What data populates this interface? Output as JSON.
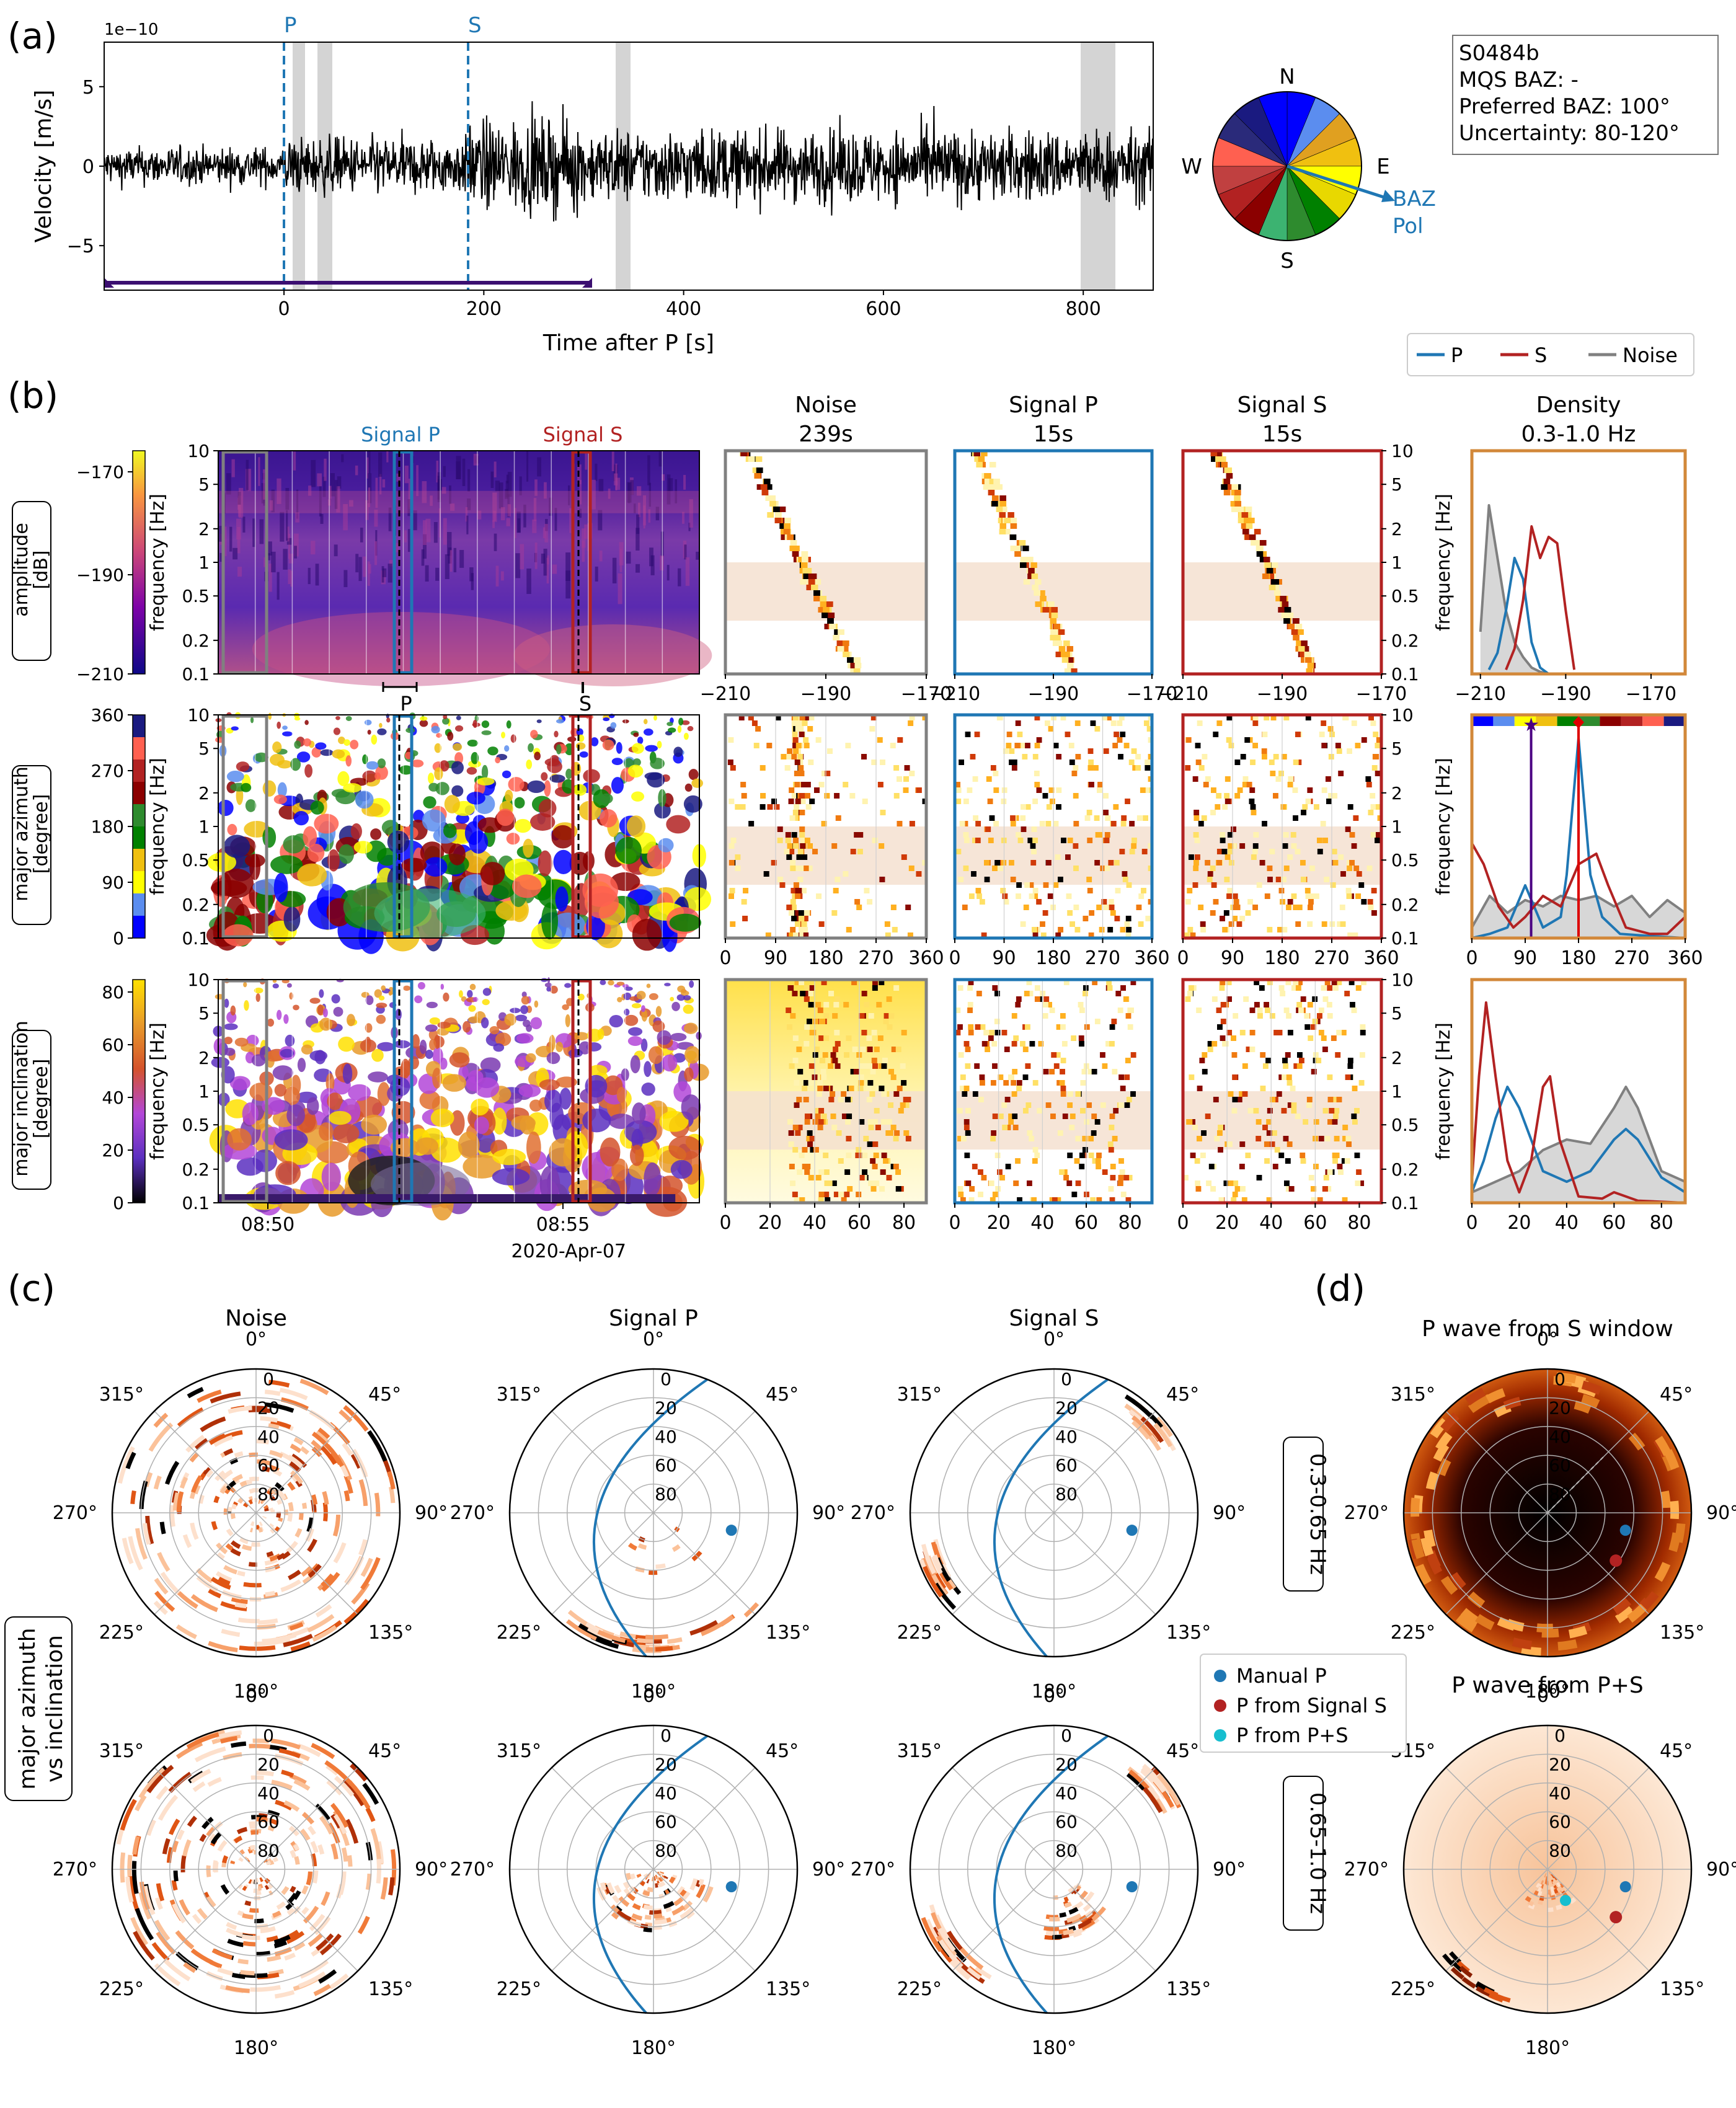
{
  "panel_labels": {
    "a": "(a)",
    "b": "(b)",
    "c": "(c)",
    "d": "(d)"
  },
  "colors": {
    "p": "#1f77b4",
    "s": "#b22222",
    "noise": "#808080",
    "density_frame": "#d2883a",
    "band": "#f5e1d0"
  },
  "waveform": {
    "ylabel": "Velocity [m/s]",
    "xlabel": "Time after P [s]",
    "exponent": "1e−10",
    "xticks": [
      "0",
      "200",
      "400",
      "600",
      "800"
    ],
    "yticks": [
      "5",
      "0",
      "−5"
    ],
    "pick_p": "P",
    "pick_s": "S"
  },
  "compass": {
    "n": "N",
    "e": "E",
    "s": "S",
    "w": "W",
    "arrow_label_1": "BAZ",
    "arrow_label_2": "Pol"
  },
  "info_box": [
    "S0484b",
    "MQS BAZ: -",
    "Preferred BAZ: 100°",
    "Uncertainty: 80-120°"
  ],
  "legend_top": [
    "P",
    "S",
    "Noise"
  ],
  "row_labels": [
    [
      "amplitude",
      "[dB]"
    ],
    [
      "major azimuth",
      "[degree]"
    ],
    [
      "major inclination",
      "[degree]"
    ]
  ],
  "colorbar_ticks": [
    [
      "−170",
      "−190",
      "−210"
    ],
    [
      "360",
      "270",
      "180",
      "90",
      "0"
    ],
    [
      "80",
      "60",
      "40",
      "20",
      "0"
    ]
  ],
  "freq_label": "frequency [Hz]",
  "freq_ticks": [
    "10",
    "5",
    "2",
    "1",
    "0.5",
    "0.2",
    "0.1"
  ],
  "spec_window_labels": {
    "signal_p": "Signal P",
    "signal_s": "Signal S",
    "p": "P",
    "s": "S"
  },
  "time_ticks": [
    "08:50",
    "08:55"
  ],
  "date_label": "2020-Apr-07",
  "column_titles": [
    [
      "Noise",
      "239s"
    ],
    [
      "Signal P",
      "15s"
    ],
    [
      "Signal S",
      "15s"
    ],
    [
      "Density",
      "0.3-1.0 Hz"
    ]
  ],
  "hist_xticks": [
    [
      "−210",
      "−190",
      "−170"
    ],
    [
      "0",
      "90",
      "180",
      "270",
      "360"
    ],
    [
      "0",
      "20",
      "40",
      "60",
      "80"
    ]
  ],
  "density_xticks": [
    [
      "−210",
      "−190",
      "−170"
    ],
    [
      "0",
      "90",
      "180",
      "270",
      "360"
    ],
    [
      "0",
      "20",
      "40",
      "60",
      "80"
    ]
  ],
  "polar": {
    "row_label": [
      "major azimuth",
      "vs inclination"
    ],
    "column_titles": [
      "Noise",
      "Signal P",
      "Signal S"
    ],
    "band_labels": [
      "0.3-0.65 Hz",
      "0.65-1.0 Hz"
    ],
    "angle_labels": [
      "0°",
      "45°",
      "90°",
      "135°",
      "180°",
      "225°",
      "270°",
      "315°"
    ],
    "radial_labels": [
      "0",
      "20",
      "40",
      "60",
      "80"
    ],
    "d_titles": [
      "P wave from S window",
      "P wave from P+S"
    ],
    "legend": [
      "Manual P",
      "P from Signal S",
      "P from P+S"
    ]
  },
  "chart_data": [
    {
      "type": "line",
      "name": "waveform",
      "x_range": [
        -180,
        870
      ],
      "ylim": [
        -7.8,
        7.8
      ],
      "x_unit": "Time after P [s]",
      "y_unit": "Velocity [m/s] ×1e−10",
      "p_time": 0,
      "s_time": 185,
      "gray_windows": [
        [
          10,
          20
        ],
        [
          35,
          48
        ],
        [
          335,
          350
        ],
        [
          800,
          832
        ]
      ],
      "timing_bar": [
        -180,
        310
      ]
    },
    {
      "type": "line",
      "name": "density_amplitude",
      "x_range": [
        -212,
        -162
      ],
      "series": [
        {
          "name": "Noise",
          "x": [
            -210,
            -208,
            -206,
            -204,
            -202,
            -200,
            -198,
            -196,
            -194
          ],
          "y": [
            0.2,
            0.8,
            0.55,
            0.3,
            0.15,
            0.08,
            0.03,
            0.01,
            0
          ]
        },
        {
          "name": "P",
          "x": [
            -208,
            -206,
            -204,
            -202,
            -200,
            -198,
            -196,
            -194
          ],
          "y": [
            0.02,
            0.1,
            0.3,
            0.55,
            0.45,
            0.15,
            0.03,
            0
          ]
        },
        {
          "name": "S",
          "x": [
            -204,
            -202,
            -200,
            -198,
            -196,
            -194,
            -192,
            -190,
            -188
          ],
          "y": [
            0.02,
            0.12,
            0.35,
            0.7,
            0.55,
            0.65,
            0.62,
            0.3,
            0.02
          ]
        }
      ]
    },
    {
      "type": "line",
      "name": "density_azimuth",
      "x_range": [
        0,
        360
      ],
      "series": [
        {
          "name": "Noise",
          "x": [
            0,
            30,
            60,
            90,
            120,
            150,
            180,
            210,
            240,
            270,
            300,
            330,
            360
          ],
          "y": [
            0.05,
            0.2,
            0.12,
            0.18,
            0.15,
            0.2,
            0.18,
            0.2,
            0.15,
            0.2,
            0.1,
            0.18,
            0.12
          ]
        },
        {
          "name": "P",
          "x": [
            0,
            30,
            60,
            90,
            120,
            150,
            160,
            180,
            200,
            220,
            250,
            300,
            360
          ],
          "y": [
            0,
            0.02,
            0.05,
            0.25,
            0.05,
            0.1,
            0.3,
            0.95,
            0.3,
            0.1,
            0.02,
            0.01,
            0
          ]
        },
        {
          "name": "S",
          "x": [
            0,
            20,
            45,
            70,
            90,
            120,
            150,
            180,
            210,
            230,
            260,
            300,
            330,
            360
          ],
          "y": [
            0.45,
            0.35,
            0.15,
            0.05,
            0.1,
            0.2,
            0.15,
            0.35,
            0.4,
            0.25,
            0.05,
            0.02,
            0.02,
            0.1
          ]
        }
      ],
      "markers": {
        "preferred_baz": 100,
        "density_peak": 180
      }
    },
    {
      "type": "line",
      "name": "density_inclination",
      "x_range": [
        0,
        90
      ],
      "series": [
        {
          "name": "Noise",
          "x": [
            0,
            10,
            20,
            30,
            40,
            50,
            60,
            65,
            70,
            80,
            90
          ],
          "y": [
            0.05,
            0.1,
            0.15,
            0.25,
            0.3,
            0.28,
            0.45,
            0.55,
            0.45,
            0.15,
            0.1
          ]
        },
        {
          "name": "P",
          "x": [
            0,
            5,
            10,
            15,
            20,
            30,
            40,
            50,
            60,
            65,
            70,
            80,
            90
          ],
          "y": [
            0.05,
            0.2,
            0.4,
            0.55,
            0.45,
            0.15,
            0.1,
            0.15,
            0.3,
            0.35,
            0.3,
            0.12,
            0.05
          ]
        },
        {
          "name": "S",
          "x": [
            0,
            3,
            6,
            10,
            15,
            20,
            25,
            30,
            33,
            37,
            45,
            55,
            60,
            70,
            90
          ],
          "y": [
            0.1,
            0.6,
            0.95,
            0.6,
            0.2,
            0.05,
            0.2,
            0.55,
            0.6,
            0.3,
            0.03,
            0.02,
            0.05,
            0.01,
            0
          ]
        }
      ]
    }
  ]
}
